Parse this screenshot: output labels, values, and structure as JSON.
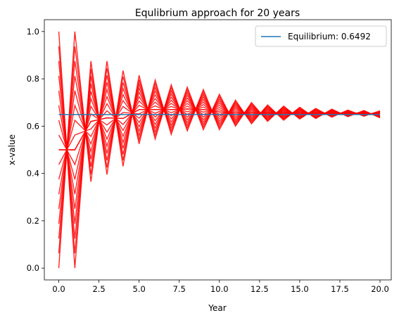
{
  "chart_data": {
    "type": "line",
    "title": "Equlibrium approach for 20 years",
    "xlabel": "Year",
    "ylabel": "x-value",
    "xlim": [
      -0.9,
      20.7
    ],
    "ylim": [
      -0.05,
      1.05
    ],
    "xticks": [
      0.0,
      2.5,
      5.0,
      7.5,
      10.0,
      12.5,
      15.0,
      17.5,
      20.0
    ],
    "xtick_labels": [
      "0.0",
      "2.5",
      "5.0",
      "7.5",
      "10.0",
      "12.5",
      "15.0",
      "17.5",
      "20.0"
    ],
    "yticks": [
      0.0,
      0.2,
      0.4,
      0.6,
      0.8,
      1.0
    ],
    "ytick_labels": [
      "0.0",
      "0.2",
      "0.4",
      "0.6",
      "0.8",
      "1.0"
    ],
    "grid": false,
    "legend_position": "top-right",
    "equilibrium": {
      "name": "Equilibrium: 0.6492",
      "value": 0.6492,
      "x_range": [
        0,
        20
      ],
      "color": "#1f77b4"
    },
    "trajectories": {
      "color": "#ff0000",
      "years": [
        0,
        1,
        2,
        3,
        4,
        5,
        6,
        7,
        8,
        9,
        10,
        11,
        12,
        13,
        14,
        15,
        16,
        17,
        18,
        19,
        20
      ],
      "upper_envelope": [
        1.0,
        1.0,
        0.875,
        0.875,
        0.835,
        0.815,
        0.795,
        0.775,
        0.765,
        0.755,
        0.735,
        0.71,
        0.7,
        0.69,
        0.685,
        0.68,
        0.675,
        0.672,
        0.668,
        0.666,
        0.665
      ],
      "lower_envelope": [
        0.0,
        0.0,
        0.365,
        0.395,
        0.43,
        0.525,
        0.545,
        0.565,
        0.58,
        0.585,
        0.585,
        0.6,
        0.61,
        0.62,
        0.625,
        0.63,
        0.632,
        0.638,
        0.64,
        0.642,
        0.635
      ]
    }
  }
}
